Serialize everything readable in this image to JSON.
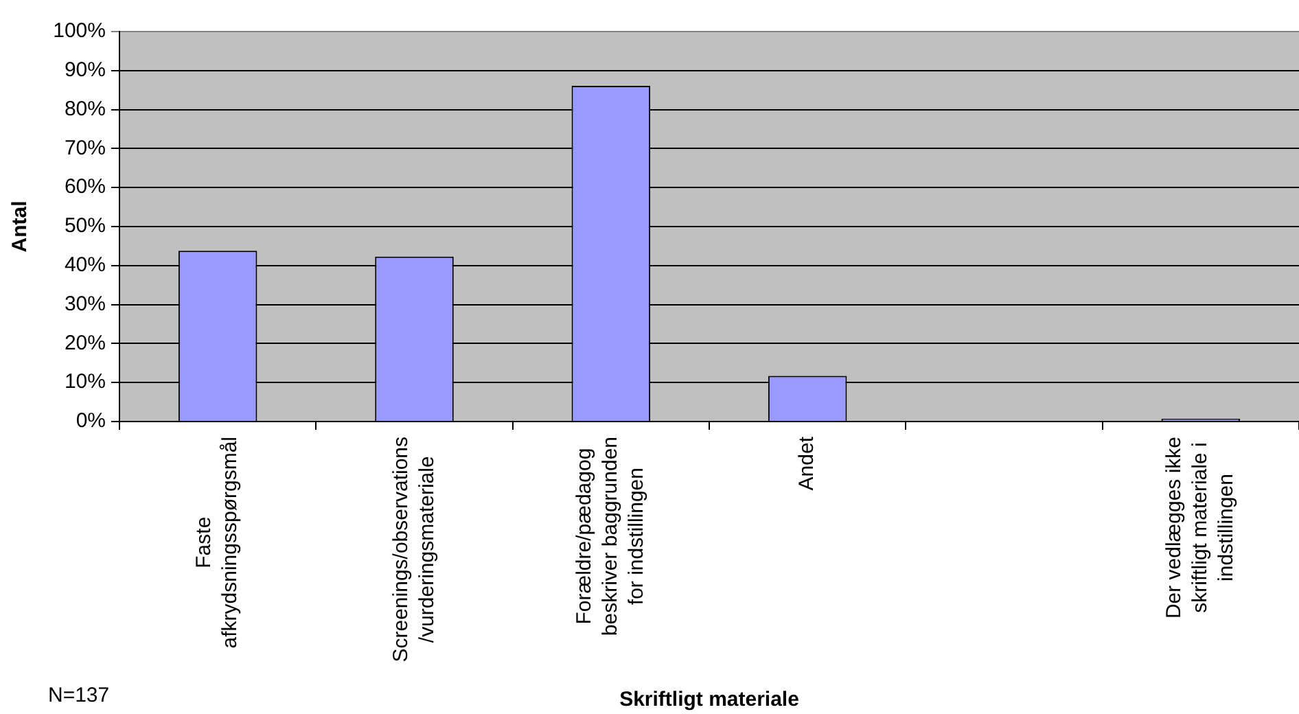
{
  "chart_data": {
    "type": "bar",
    "xlabel": "Skriftligt materiale",
    "ylabel": "Antal",
    "categories": [
      "Faste afkrydsningsspørgsmål",
      "Screenings/observations/vurderingsmateriale",
      "Forældre/pædagog beskriver baggrunden for indstillingen",
      "Andet",
      null,
      "Der vedlægges ikke skriftligt materiale i indstillingen"
    ],
    "values": [
      43.8,
      42.3,
      86.1,
      11.7,
      null,
      0.7
    ],
    "color": "#9999ff",
    "ylim": [
      0,
      100
    ],
    "yticks": [
      {
        "value": 0,
        "label": "0%"
      },
      {
        "value": 10,
        "label": "10%"
      },
      {
        "value": 20,
        "label": "20%"
      },
      {
        "value": 30,
        "label": "30%"
      },
      {
        "value": 40,
        "label": "40%"
      },
      {
        "value": 50,
        "label": "50%"
      },
      {
        "value": 60,
        "label": "60%"
      },
      {
        "value": 70,
        "label": "70%"
      },
      {
        "value": 80,
        "label": "80%"
      },
      {
        "value": 90,
        "label": "90%"
      },
      {
        "value": 100,
        "label": "100%"
      }
    ],
    "grid": "y",
    "annotations": [
      "N=137"
    ]
  }
}
